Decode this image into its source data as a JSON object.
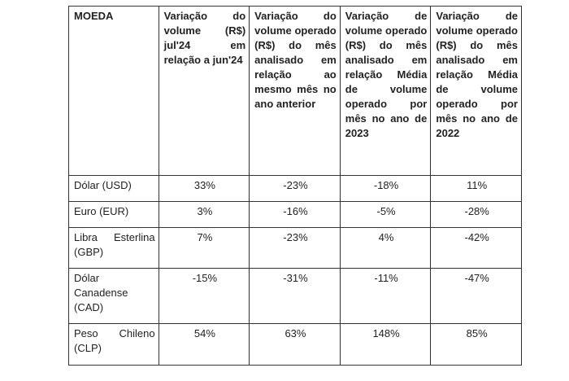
{
  "table": {
    "headers": [
      "MOEDA",
      "Variação do volume (R$) jul'24 em relação a jun'24",
      "Variação do volume operado (R$) do mês analisado em relação ao mesmo mês no ano anterior",
      "Variação de volume operado (R$) do mês analisado em relação Média de volume operado por mês no ano de 2023",
      "Variação de volume operado (R$) do mês analisado em relação Média de volume operado por mês no ano de 2022"
    ],
    "rows": [
      {
        "currency": "Dólar (USD)",
        "values": [
          "33%",
          "-23%",
          "-18%",
          "11%"
        ]
      },
      {
        "currency": "Euro (EUR)",
        "values": [
          "3%",
          "-16%",
          "-5%",
          "-28%"
        ]
      },
      {
        "currency": "Libra Esterlina (GBP)",
        "values": [
          "7%",
          "-23%",
          "4%",
          "-42%"
        ]
      },
      {
        "currency": "Dólar Canadense (CAD)",
        "values": [
          "-15%",
          "-31%",
          "-11%",
          "-47%"
        ]
      },
      {
        "currency": "Peso Chileno (CLP)",
        "values": [
          "54%",
          "63%",
          "148%",
          "85%"
        ]
      }
    ]
  }
}
